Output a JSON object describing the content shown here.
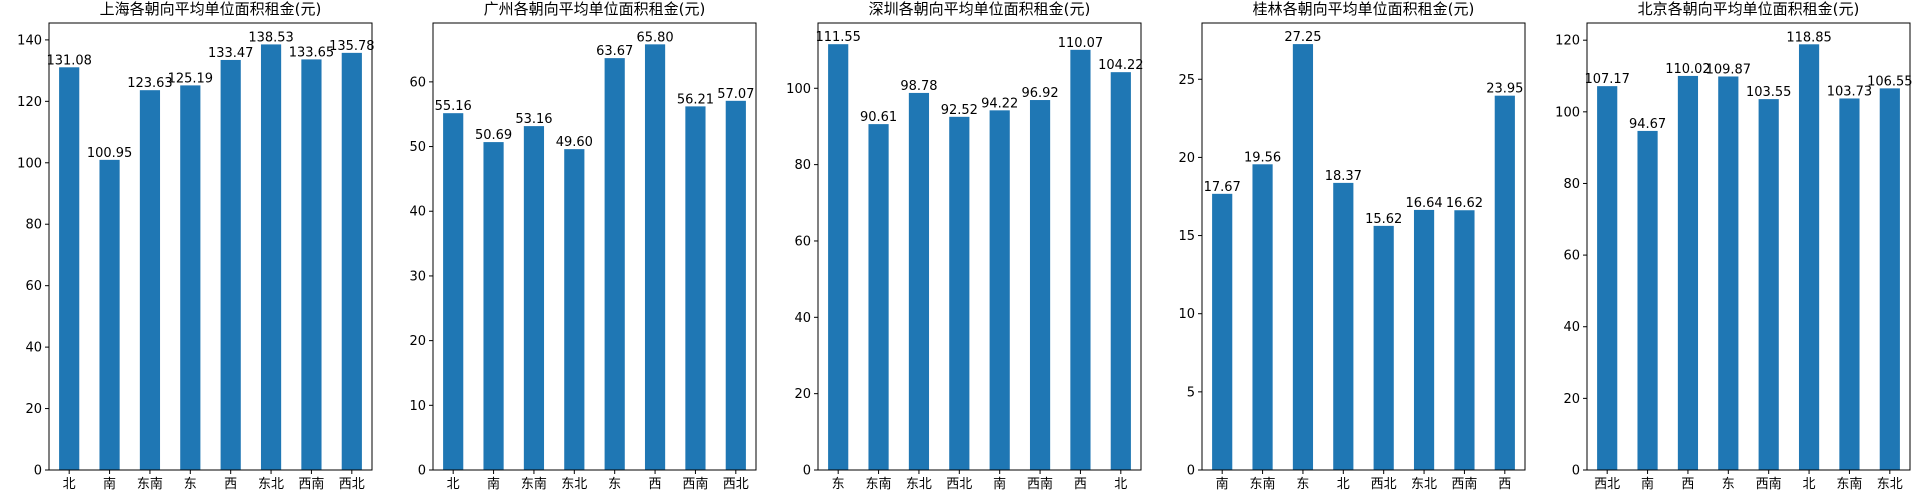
{
  "chart_data": [
    {
      "type": "bar",
      "title": "上海各朝向平均单位面积租金(元)",
      "categories": [
        "北",
        "南",
        "东南",
        "东",
        "西",
        "东北",
        "西南",
        "西北"
      ],
      "values": [
        131.08,
        100.95,
        123.63,
        125.19,
        133.47,
        138.53,
        133.65,
        135.78
      ],
      "ylim": [
        0,
        145.5
      ],
      "yticks": [
        0,
        20,
        40,
        60,
        80,
        100,
        120,
        140
      ],
      "ytick_labels": [
        "0",
        "20",
        "40",
        "60",
        "80",
        "100",
        "120",
        "140"
      ],
      "color": "#1f77b4"
    },
    {
      "type": "bar",
      "title": "广州各朝向平均单位面积租金(元)",
      "categories": [
        "北",
        "南",
        "东南",
        "东北",
        "东",
        "西",
        "西南",
        "西北"
      ],
      "values": [
        55.16,
        50.69,
        53.16,
        49.6,
        63.67,
        65.8,
        56.21,
        57.07
      ],
      "ylim": [
        0,
        69.1
      ],
      "yticks": [
        0,
        10,
        20,
        30,
        40,
        50,
        60
      ],
      "ytick_labels": [
        "0",
        "10",
        "20",
        "30",
        "40",
        "50",
        "60"
      ],
      "color": "#1f77b4"
    },
    {
      "type": "bar",
      "title": "深圳各朝向平均单位面积租金(元)",
      "categories": [
        "东",
        "东南",
        "东北",
        "西北",
        "南",
        "西南",
        "西",
        "北"
      ],
      "values": [
        111.55,
        90.61,
        98.78,
        92.52,
        94.22,
        96.92,
        110.07,
        104.22
      ],
      "ylim": [
        0,
        117.1
      ],
      "yticks": [
        0,
        20,
        40,
        60,
        80,
        100
      ],
      "ytick_labels": [
        "0",
        "20",
        "40",
        "60",
        "80",
        "100"
      ],
      "color": "#1f77b4"
    },
    {
      "type": "bar",
      "title": "桂林各朝向平均单位面积租金(元)",
      "categories": [
        "南",
        "东南",
        "东",
        "北",
        "西北",
        "东北",
        "西南",
        "西"
      ],
      "values": [
        17.67,
        19.56,
        27.25,
        18.37,
        15.62,
        16.64,
        16.62,
        23.95
      ],
      "ylim": [
        0,
        28.6
      ],
      "yticks": [
        0,
        5,
        10,
        15,
        20,
        25
      ],
      "ytick_labels": [
        "0",
        "5",
        "10",
        "15",
        "20",
        "25"
      ],
      "color": "#1f77b4"
    },
    {
      "type": "bar",
      "title": "北京各朝向平均单位面积租金(元)",
      "categories": [
        "西北",
        "南",
        "西",
        "东",
        "西南",
        "北",
        "东南",
        "东北"
      ],
      "values": [
        107.17,
        94.67,
        110.02,
        109.87,
        103.55,
        118.85,
        103.73,
        106.55
      ],
      "ylim": [
        0,
        124.8
      ],
      "yticks": [
        0,
        20,
        40,
        60,
        80,
        100,
        120
      ],
      "ytick_labels": [
        "0",
        "20",
        "40",
        "60",
        "80",
        "100",
        "120"
      ],
      "color": "#1f77b4"
    }
  ]
}
